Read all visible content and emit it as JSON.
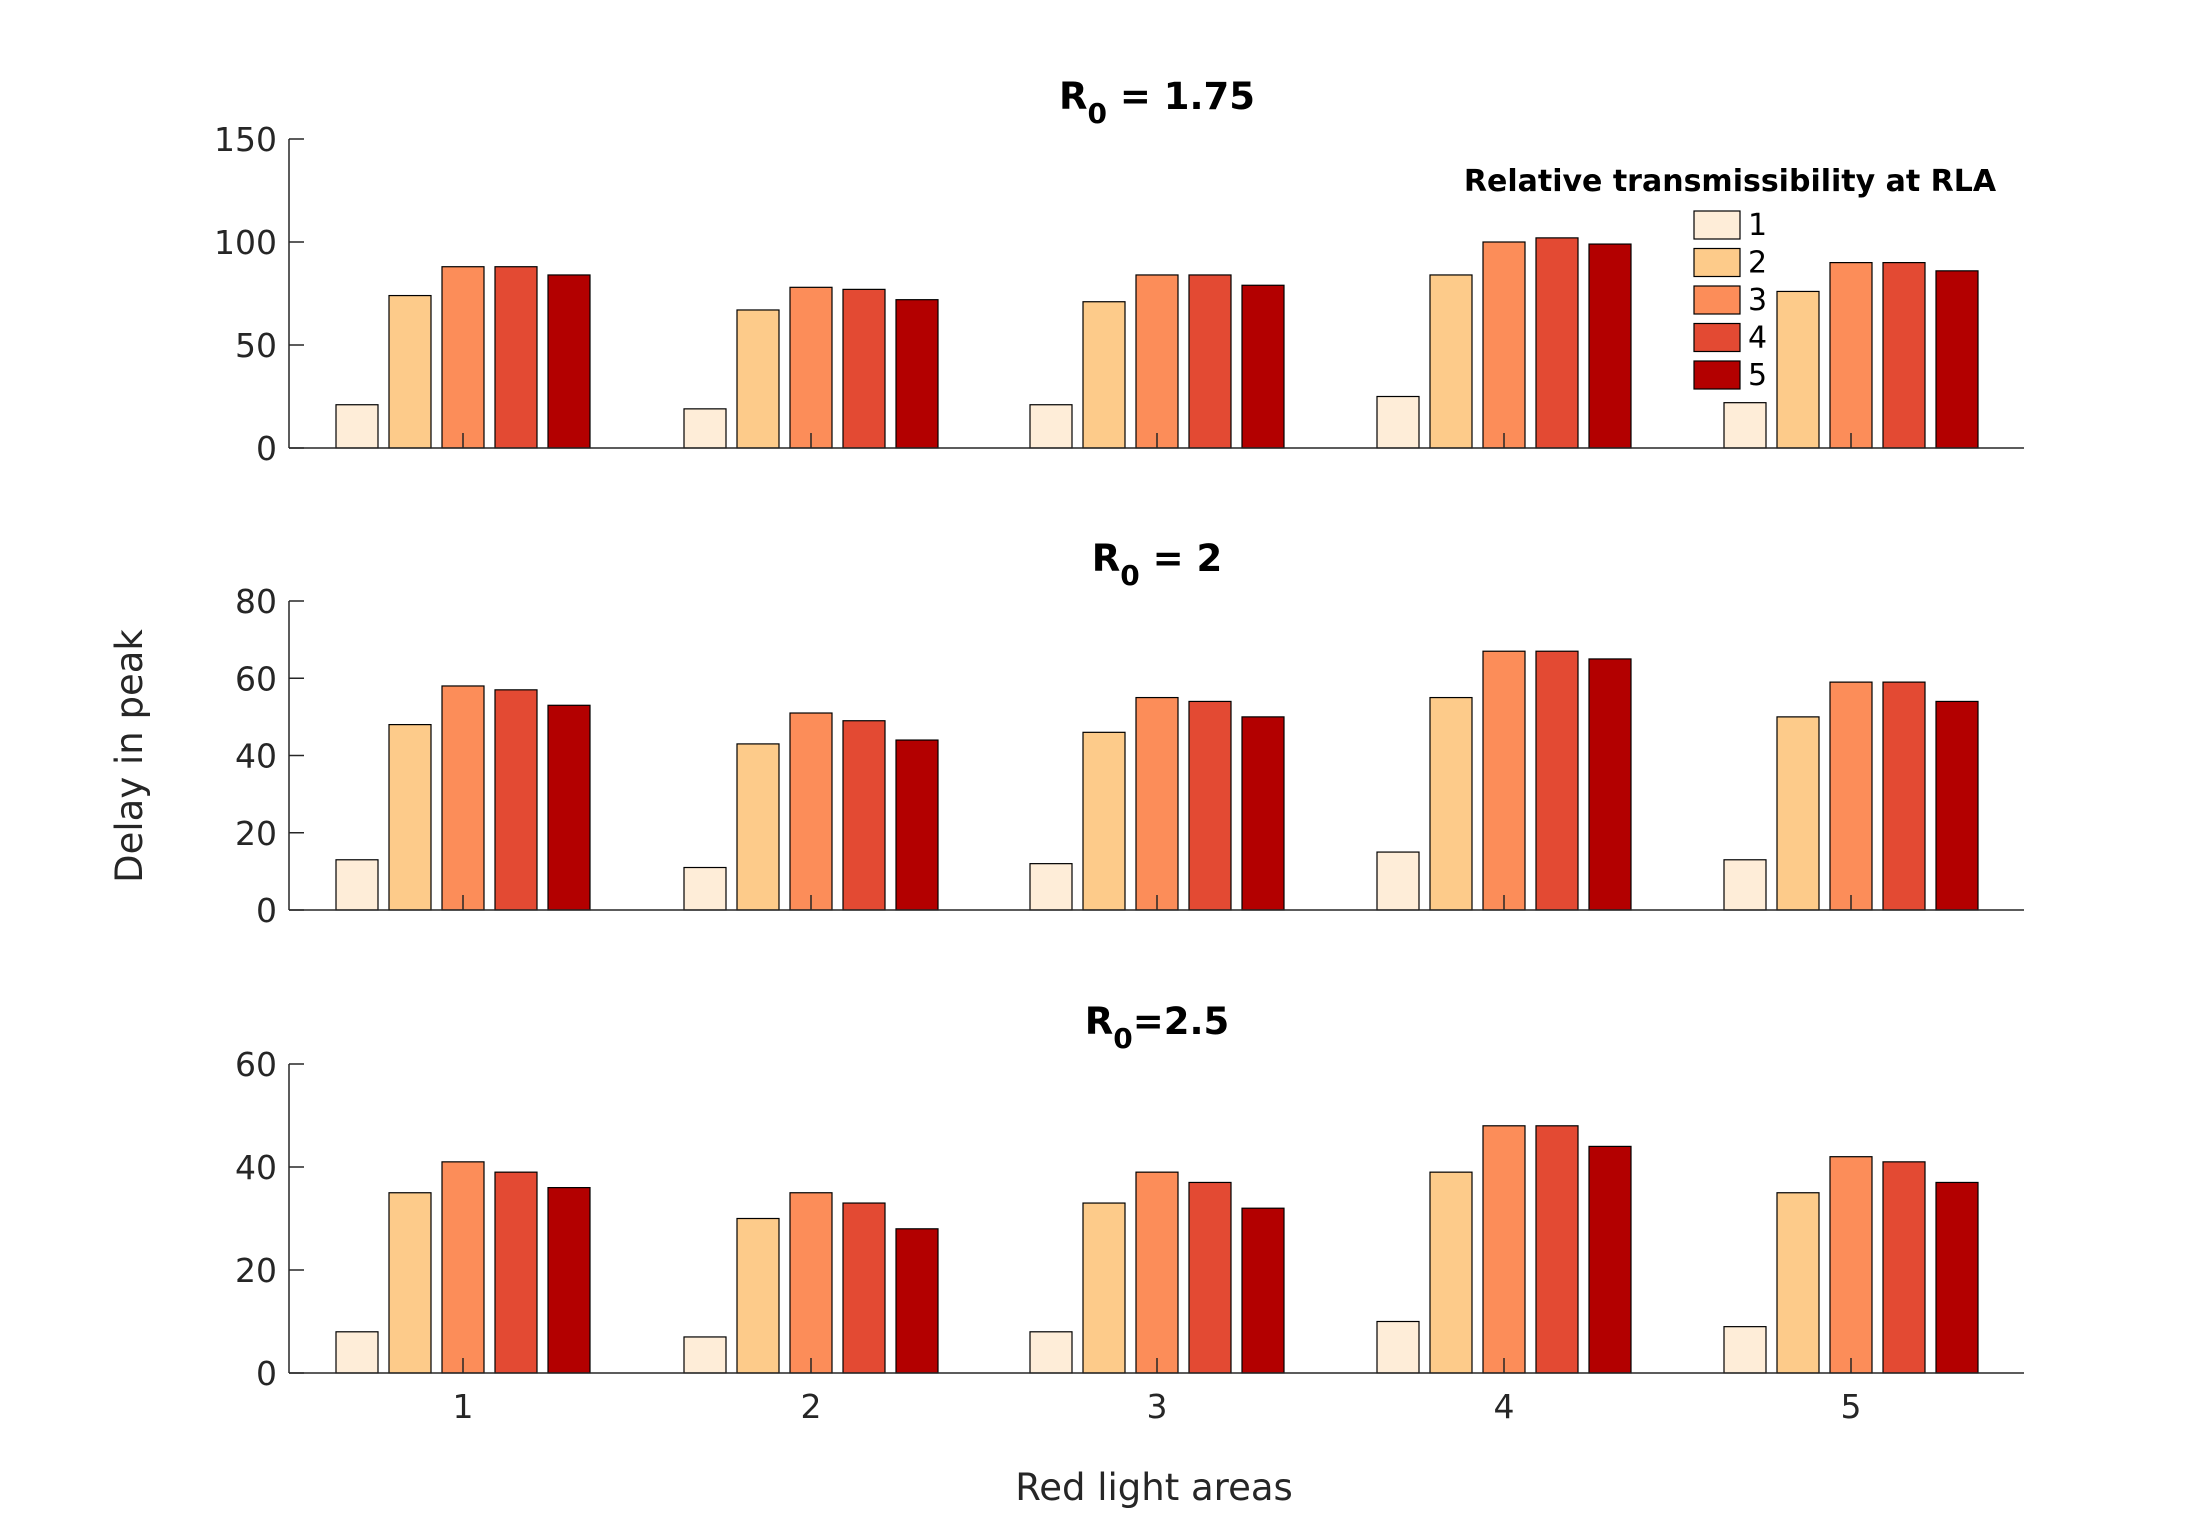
{
  "chart_data": {
    "type": "bar",
    "ylabel": "Delay in peak",
    "xlabel": "Red light areas",
    "categories": [
      "1",
      "2",
      "3",
      "4",
      "5"
    ],
    "legend": {
      "title": "Relative transmissibility at RLA",
      "placement": "top-right",
      "entries": [
        "1",
        "2",
        "3",
        "4",
        "5"
      ]
    },
    "colors": [
      "#FEEDD8",
      "#FDCB8A",
      "#FC8D59",
      "#E34A33",
      "#B30000"
    ],
    "panels": [
      {
        "title_main": "R",
        "title_sub": "0",
        "title_rest": " = 1.75",
        "ylim": [
          0,
          150
        ],
        "yticks": [
          0,
          50,
          100,
          150
        ],
        "series": [
          {
            "name": "1",
            "values": [
              21,
              19,
              21,
              25,
              22
            ]
          },
          {
            "name": "2",
            "values": [
              74,
              67,
              71,
              84,
              76
            ]
          },
          {
            "name": "3",
            "values": [
              88,
              78,
              84,
              100,
              90
            ]
          },
          {
            "name": "4",
            "values": [
              88,
              77,
              84,
              102,
              90
            ]
          },
          {
            "name": "5",
            "values": [
              84,
              72,
              79,
              99,
              86
            ]
          }
        ]
      },
      {
        "title_main": "R",
        "title_sub": "0",
        "title_rest": " = 2",
        "ylim": [
          0,
          80
        ],
        "yticks": [
          0,
          20,
          40,
          60,
          80
        ],
        "series": [
          {
            "name": "1",
            "values": [
              13,
              11,
              12,
              15,
              13
            ]
          },
          {
            "name": "2",
            "values": [
              48,
              43,
              46,
              55,
              50
            ]
          },
          {
            "name": "3",
            "values": [
              58,
              51,
              55,
              67,
              59
            ]
          },
          {
            "name": "4",
            "values": [
              57,
              49,
              54,
              67,
              59
            ]
          },
          {
            "name": "5",
            "values": [
              53,
              44,
              50,
              65,
              54
            ]
          }
        ]
      },
      {
        "title_main": "R",
        "title_sub": "0",
        "title_rest": "=2.5",
        "ylim": [
          0,
          60
        ],
        "yticks": [
          0,
          20,
          40,
          60
        ],
        "series": [
          {
            "name": "1",
            "values": [
              8,
              7,
              8,
              10,
              9
            ]
          },
          {
            "name": "2",
            "values": [
              35,
              30,
              33,
              39,
              35
            ]
          },
          {
            "name": "3",
            "values": [
              41,
              35,
              39,
              48,
              42
            ]
          },
          {
            "name": "4",
            "values": [
              39,
              33,
              37,
              48,
              41
            ]
          },
          {
            "name": "5",
            "values": [
              36,
              28,
              32,
              44,
              37
            ]
          }
        ]
      }
    ]
  }
}
